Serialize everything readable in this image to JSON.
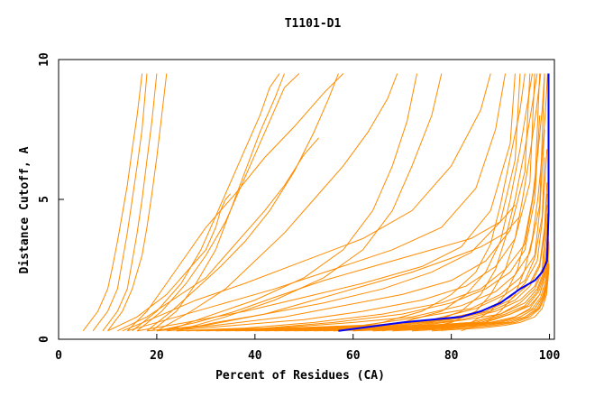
{
  "chart_data": {
    "type": "line",
    "title": "T1101-D1",
    "xlabel": "Percent of Residues (CA)",
    "ylabel": "Distance Cutoff, A",
    "xlim": [
      0,
      101
    ],
    "ylim": [
      0,
      10
    ],
    "xticks": [
      0,
      20,
      40,
      60,
      80,
      100
    ],
    "yticks": [
      0,
      5,
      10
    ],
    "grid": false,
    "legend": "none",
    "colors": {
      "models": "#ff8c00",
      "highlight": "#0000ff"
    },
    "series": [
      {
        "color": "#ff8c00",
        "x": [
          5,
          8,
          10,
          11,
          12,
          13,
          14,
          15,
          16,
          17
        ],
        "y": [
          0.3,
          1.0,
          1.8,
          2.6,
          3.5,
          4.5,
          5.5,
          6.8,
          8.0,
          9.5
        ]
      },
      {
        "color": "#ff8c00",
        "x": [
          7,
          10,
          12,
          13,
          14,
          15,
          16,
          17,
          18
        ],
        "y": [
          0.3,
          1.0,
          1.8,
          2.8,
          3.8,
          5.0,
          6.2,
          7.5,
          9.5
        ]
      },
      {
        "color": "#ff8c00",
        "x": [
          9,
          12,
          14,
          15,
          16,
          17,
          18,
          19,
          20
        ],
        "y": [
          0.3,
          1.0,
          1.8,
          2.8,
          3.8,
          5.0,
          6.4,
          7.8,
          9.5
        ]
      },
      {
        "color": "#ff8c00",
        "x": [
          10,
          13,
          15,
          17,
          18,
          19,
          20,
          21,
          22
        ],
        "y": [
          0.3,
          1.0,
          1.8,
          3.0,
          4.0,
          5.2,
          6.5,
          8.0,
          9.5
        ]
      },
      {
        "color": "#ff8c00",
        "x": [
          14,
          18,
          22,
          26,
          30,
          36,
          42,
          48,
          54,
          58
        ],
        "y": [
          0.3,
          1.0,
          2.0,
          3.0,
          4.0,
          5.2,
          6.5,
          7.6,
          8.8,
          9.5
        ]
      },
      {
        "color": "#ff8c00",
        "x": [
          15,
          20,
          25,
          29,
          32,
          35,
          38,
          41,
          43,
          45
        ],
        "y": [
          0.3,
          1.0,
          2.0,
          3.2,
          4.4,
          5.6,
          6.8,
          8.0,
          9.0,
          9.5
        ]
      },
      {
        "color": "#ff8c00",
        "x": [
          16,
          21,
          26,
          30,
          34,
          37,
          40,
          43,
          46,
          49
        ],
        "y": [
          0.3,
          1.0,
          2.0,
          3.0,
          4.2,
          5.4,
          6.6,
          7.8,
          9.0,
          9.5
        ]
      },
      {
        "color": "#ff8c00",
        "x": [
          18,
          23,
          28,
          33,
          38,
          43,
          48,
          52,
          55,
          57
        ],
        "y": [
          0.3,
          1.0,
          1.8,
          2.6,
          3.5,
          4.6,
          6.0,
          7.4,
          8.6,
          9.5
        ]
      },
      {
        "color": "#ff8c00",
        "x": [
          19,
          24,
          28,
          32,
          35,
          38,
          41,
          44,
          46
        ],
        "y": [
          0.3,
          1.0,
          2.0,
          3.2,
          4.6,
          6.0,
          7.4,
          8.6,
          9.5
        ]
      },
      {
        "color": "#ff8c00",
        "x": [
          20,
          27,
          34,
          40,
          46,
          52,
          58,
          63,
          67,
          69
        ],
        "y": [
          0.3,
          1.0,
          1.8,
          2.8,
          3.8,
          5.0,
          6.2,
          7.4,
          8.6,
          9.5
        ]
      },
      {
        "color": "#ff8c00",
        "x": [
          22,
          30,
          40,
          50,
          58,
          64,
          68,
          71,
          73
        ],
        "y": [
          0.3,
          0.8,
          1.4,
          2.2,
          3.2,
          4.6,
          6.2,
          7.8,
          9.5
        ]
      },
      {
        "color": "#ff8c00",
        "x": [
          24,
          34,
          44,
          54,
          62,
          68,
          72,
          76,
          78
        ],
        "y": [
          0.3,
          0.8,
          1.4,
          2.2,
          3.2,
          4.6,
          6.2,
          8.0,
          9.5
        ]
      },
      {
        "color": "#ff8c00",
        "x": [
          13,
          20,
          28,
          38,
          50,
          62,
          72,
          80,
          86,
          88
        ],
        "y": [
          0.3,
          0.8,
          1.4,
          2.0,
          2.8,
          3.6,
          4.6,
          6.2,
          8.2,
          9.5
        ]
      },
      {
        "color": "#ff8c00",
        "x": [
          14,
          22,
          32,
          44,
          56,
          68,
          78,
          85,
          89,
          91
        ],
        "y": [
          0.3,
          0.7,
          1.2,
          1.8,
          2.5,
          3.2,
          4.0,
          5.4,
          7.5,
          9.5
        ]
      },
      {
        "color": "#ff8c00",
        "x": [
          16,
          26,
          38,
          50,
          62,
          74,
          82,
          88,
          92,
          93
        ],
        "y": [
          0.3,
          0.6,
          1.0,
          1.5,
          2.0,
          2.6,
          3.3,
          4.6,
          7.0,
          9.5
        ]
      },
      {
        "color": "#ff8c00",
        "x": [
          18,
          30,
          42,
          54,
          66,
          76,
          84,
          90,
          93,
          94
        ],
        "y": [
          0.3,
          0.5,
          0.9,
          1.3,
          1.8,
          2.4,
          3.1,
          4.2,
          6.4,
          9.5
        ]
      },
      {
        "color": "#ff8c00",
        "x": [
          20,
          32,
          46,
          58,
          70,
          80,
          87,
          92,
          95,
          96
        ],
        "y": [
          0.3,
          0.5,
          0.8,
          1.2,
          1.6,
          2.1,
          2.8,
          3.9,
          6.0,
          9.5
        ]
      },
      {
        "color": "#ff8c00",
        "x": [
          22,
          36,
          50,
          62,
          74,
          83,
          89,
          93,
          96,
          97
        ],
        "y": [
          0.3,
          0.5,
          0.7,
          1.0,
          1.4,
          1.9,
          2.6,
          3.6,
          5.6,
          9.5
        ]
      },
      {
        "color": "#ff8c00",
        "x": [
          24,
          38,
          52,
          66,
          78,
          86,
          91,
          95,
          97,
          98
        ],
        "y": [
          0.3,
          0.4,
          0.6,
          0.9,
          1.3,
          1.8,
          2.5,
          3.4,
          5.4,
          9.5
        ]
      },
      {
        "color": "#ff8c00",
        "x": [
          26,
          42,
          56,
          70,
          80,
          87,
          92,
          95,
          97,
          98
        ],
        "y": [
          0.3,
          0.4,
          0.6,
          0.9,
          1.3,
          1.8,
          2.4,
          3.2,
          5.0,
          8.0
        ]
      },
      {
        "color": "#ff8c00",
        "x": [
          28,
          44,
          60,
          72,
          82,
          89,
          93,
          96,
          98,
          99
        ],
        "y": [
          0.3,
          0.4,
          0.6,
          0.8,
          1.2,
          1.7,
          2.3,
          3.1,
          4.8,
          9.5
        ]
      },
      {
        "color": "#ff8c00",
        "x": [
          30,
          46,
          62,
          74,
          84,
          90,
          94,
          97,
          98,
          99
        ],
        "y": [
          0.3,
          0.4,
          0.5,
          0.8,
          1.1,
          1.6,
          2.2,
          3.0,
          4.6,
          7.5
        ]
      },
      {
        "color": "#ff8c00",
        "x": [
          32,
          50,
          64,
          76,
          85,
          91,
          95,
          97,
          98.5,
          99
        ],
        "y": [
          0.3,
          0.4,
          0.5,
          0.7,
          1.1,
          1.6,
          2.1,
          2.9,
          4.4,
          6.5
        ]
      },
      {
        "color": "#ff8c00",
        "x": [
          34,
          52,
          66,
          78,
          86,
          92,
          95,
          97.5,
          98.5,
          99.5
        ],
        "y": [
          0.3,
          0.4,
          0.5,
          0.7,
          1.0,
          1.5,
          2.0,
          2.8,
          4.2,
          6.8
        ]
      },
      {
        "color": "#ff8c00",
        "x": [
          36,
          54,
          68,
          79,
          87,
          92,
          96,
          98,
          99,
          99.5
        ],
        "y": [
          0.3,
          0.4,
          0.5,
          0.7,
          1.0,
          1.4,
          2.0,
          2.7,
          4.0,
          5.6
        ]
      },
      {
        "color": "#ff8c00",
        "x": [
          38,
          56,
          70,
          80,
          88,
          93,
          96,
          98,
          99,
          99.5
        ],
        "y": [
          0.3,
          0.4,
          0.5,
          0.7,
          1.0,
          1.4,
          1.9,
          2.6,
          3.8,
          5.2
        ]
      },
      {
        "color": "#ff8c00",
        "x": [
          40,
          58,
          72,
          82,
          89,
          94,
          97,
          98.5,
          99,
          99.5
        ],
        "y": [
          0.3,
          0.4,
          0.5,
          0.7,
          1.0,
          1.4,
          1.9,
          2.5,
          3.6,
          4.8
        ]
      },
      {
        "color": "#ff8c00",
        "x": [
          42,
          60,
          74,
          83,
          90,
          94,
          97,
          98.5,
          99.2,
          99.6
        ],
        "y": [
          0.3,
          0.4,
          0.5,
          0.7,
          0.9,
          1.3,
          1.8,
          2.4,
          3.4,
          4.5
        ]
      },
      {
        "color": "#ff8c00",
        "x": [
          44,
          62,
          75,
          84,
          90,
          95,
          97.5,
          98.8,
          99.4,
          99.7
        ],
        "y": [
          0.3,
          0.4,
          0.5,
          0.6,
          0.9,
          1.3,
          1.8,
          2.4,
          3.3,
          4.2
        ]
      },
      {
        "color": "#ff8c00",
        "x": [
          46,
          64,
          76,
          85,
          91,
          95,
          97.5,
          98.8,
          99.4,
          99.8
        ],
        "y": [
          0.3,
          0.4,
          0.5,
          0.6,
          0.9,
          1.2,
          1.7,
          2.3,
          3.2,
          4.0
        ]
      },
      {
        "color": "#ff8c00",
        "x": [
          48,
          66,
          78,
          86,
          92,
          95.5,
          97.8,
          99,
          99.5,
          99.8
        ],
        "y": [
          0.3,
          0.4,
          0.5,
          0.6,
          0.9,
          1.2,
          1.7,
          2.3,
          3.1,
          3.8
        ]
      },
      {
        "color": "#ff8c00",
        "x": [
          50,
          68,
          79,
          87,
          92,
          96,
          98,
          99,
          99.5,
          99.8
        ],
        "y": [
          0.3,
          0.4,
          0.5,
          0.6,
          0.9,
          1.2,
          1.6,
          2.2,
          3.0,
          3.6
        ]
      },
      {
        "color": "#ff8c00",
        "x": [
          52,
          70,
          80,
          88,
          93,
          96,
          98,
          99,
          99.6,
          99.9
        ],
        "y": [
          0.3,
          0.4,
          0.5,
          0.6,
          0.8,
          1.1,
          1.6,
          2.2,
          2.9,
          3.5
        ]
      },
      {
        "color": "#ff8c00",
        "x": [
          54,
          72,
          82,
          88,
          93,
          96.5,
          98.2,
          99.2,
          99.6,
          99.9
        ],
        "y": [
          0.3,
          0.4,
          0.5,
          0.6,
          0.8,
          1.1,
          1.5,
          2.1,
          2.8,
          3.4
        ]
      },
      {
        "color": "#ff8c00",
        "x": [
          56,
          74,
          83,
          89,
          94,
          97,
          98.5,
          99.3,
          99.7,
          99.9
        ],
        "y": [
          0.3,
          0.4,
          0.5,
          0.6,
          0.8,
          1.1,
          1.5,
          2.0,
          2.7,
          3.3
        ]
      },
      {
        "color": "#ff8c00",
        "x": [
          60,
          76,
          84,
          90,
          94,
          97,
          98.6,
          99.4,
          99.8
        ],
        "y": [
          0.3,
          0.4,
          0.5,
          0.6,
          0.8,
          1.1,
          1.5,
          2.0,
          2.8
        ]
      },
      {
        "color": "#ff8c00",
        "x": [
          64,
          78,
          85,
          91,
          95,
          97.5,
          98.8,
          99.5,
          99.9
        ],
        "y": [
          0.3,
          0.4,
          0.5,
          0.6,
          0.8,
          1.1,
          1.5,
          2.0,
          2.7
        ]
      },
      {
        "color": "#ff8c00",
        "x": [
          68,
          80,
          87,
          92,
          95.5,
          97.8,
          99,
          99.6,
          99.9
        ],
        "y": [
          0.3,
          0.4,
          0.5,
          0.6,
          0.8,
          1.1,
          1.5,
          2.0,
          2.6
        ]
      },
      {
        "color": "#ff8c00",
        "x": [
          72,
          83,
          89,
          93,
          96,
          98,
          99,
          99.7
        ],
        "y": [
          0.3,
          0.4,
          0.5,
          0.6,
          0.8,
          1.1,
          1.5,
          2.2
        ]
      },
      {
        "color": "#ff8c00",
        "x": [
          76,
          86,
          91,
          94,
          97,
          98.5,
          99.4,
          99.8
        ],
        "y": [
          0.3,
          0.4,
          0.5,
          0.6,
          0.8,
          1.1,
          1.6,
          2.4
        ]
      },
      {
        "color": "#ff8c00",
        "x": [
          56,
          66,
          74,
          80,
          85,
          88,
          90,
          92,
          94,
          95
        ],
        "y": [
          0.3,
          0.6,
          1.0,
          1.6,
          2.4,
          3.4,
          4.8,
          6.5,
          8.2,
          9.5
        ]
      },
      {
        "color": "#ff8c00",
        "x": [
          60,
          70,
          78,
          83,
          87,
          90,
          92,
          94,
          95.5,
          96.5
        ],
        "y": [
          0.3,
          0.6,
          1.0,
          1.6,
          2.4,
          3.5,
          5.0,
          6.8,
          8.4,
          9.5
        ]
      },
      {
        "color": "#ff8c00",
        "x": [
          66,
          76,
          82,
          86,
          89,
          91,
          93,
          95,
          96.5,
          97.5
        ],
        "y": [
          0.3,
          0.6,
          1.0,
          1.6,
          2.5,
          3.6,
          5.0,
          6.8,
          8.4,
          9.5
        ]
      },
      {
        "color": "#ff8c00",
        "x": [
          72,
          80,
          85,
          88,
          91,
          93,
          94.5,
          96,
          97.3,
          98.2
        ],
        "y": [
          0.3,
          0.6,
          1.0,
          1.6,
          2.5,
          3.6,
          5.0,
          6.6,
          8.2,
          9.5
        ]
      },
      {
        "color": "#ff8c00",
        "x": [
          78,
          84,
          88,
          91,
          93.5,
          95,
          96.5,
          97.6,
          98.5,
          99
        ],
        "y": [
          0.3,
          0.6,
          1.0,
          1.6,
          2.5,
          3.6,
          5.0,
          6.6,
          8.2,
          9.5
        ]
      },
      {
        "color": "#ff8c00",
        "x": [
          82,
          87,
          90,
          93,
          95,
          96.5,
          97.6,
          98.5,
          99.2,
          99.6
        ],
        "y": [
          0.3,
          0.6,
          1.0,
          1.6,
          2.5,
          3.6,
          5.0,
          6.6,
          8.2,
          9.5
        ]
      },
      {
        "color": "#ff8c00",
        "x": [
          10,
          16,
          22,
          26,
          30,
          32,
          33,
          34,
          35
        ],
        "y": [
          0.3,
          0.8,
          1.6,
          2.4,
          3.2,
          4.0,
          4.6,
          5.0,
          5.2
        ]
      },
      {
        "color": "#ff8c00",
        "x": [
          12,
          18,
          24,
          30,
          34,
          38,
          42,
          46,
          50,
          53
        ],
        "y": [
          0.3,
          0.8,
          1.5,
          2.2,
          3.0,
          3.8,
          4.6,
          5.5,
          6.6,
          7.2
        ]
      },
      {
        "color": "#ff8c00",
        "x": [
          20,
          28,
          36,
          44,
          54,
          64,
          74,
          84,
          90,
          93
        ],
        "y": [
          0.3,
          0.6,
          1.0,
          1.5,
          2.1,
          2.6,
          3.1,
          3.6,
          4.2,
          4.8
        ]
      },
      {
        "color": "#ff8c00",
        "x": [
          24,
          32,
          42,
          52,
          62,
          72,
          80,
          86,
          91,
          94
        ],
        "y": [
          0.3,
          0.6,
          0.9,
          1.4,
          1.9,
          2.4,
          2.9,
          3.3,
          3.8,
          4.4
        ]
      },
      {
        "color": "#0000ff",
        "x": [
          57,
          70,
          82,
          86,
          90,
          94,
          97,
          98.5,
          99.5,
          99.8,
          99.8,
          99.8,
          99.8
        ],
        "y": [
          0.3,
          0.6,
          0.8,
          1.0,
          1.3,
          1.8,
          2.1,
          2.4,
          2.8,
          4.5,
          6.5,
          8.0,
          9.5
        ]
      }
    ]
  }
}
